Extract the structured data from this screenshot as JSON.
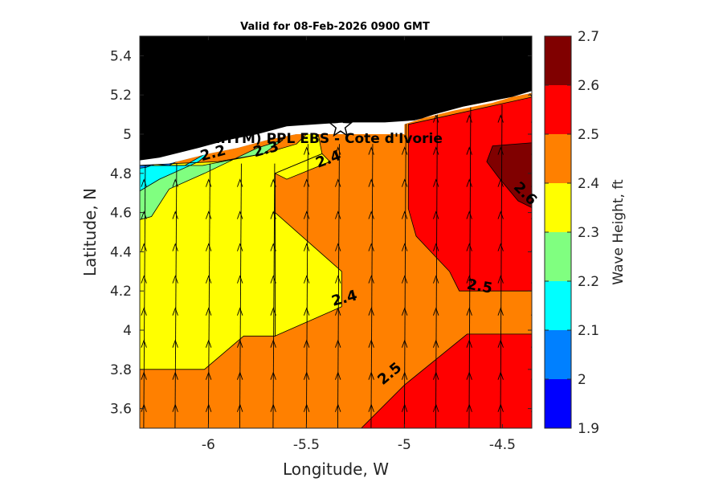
{
  "chart_data": {
    "type": "heatmap",
    "subtype": "filled-contour with wind/wave direction arrows and coastline",
    "title": "Valid for 08-Feb-2026 0900 GMT",
    "xlabel": "Longitude, W",
    "ylabel": "Latitude, N",
    "colorbar_label": "Wave Height, ft",
    "xlim": [
      -6.35,
      -4.35
    ],
    "ylim": [
      3.5,
      5.5
    ],
    "x_ticks": [
      -6,
      -5.5,
      -5,
      -4.5
    ],
    "x_tick_labels": [
      "-6",
      "-5.5",
      "-5",
      "-4.5"
    ],
    "y_ticks": [
      3.6,
      3.8,
      4.0,
      4.2,
      4.4,
      4.6,
      4.8,
      5.0,
      5.2,
      5.4
    ],
    "y_tick_labels": [
      "3.6",
      "3.8",
      "4",
      "4.2",
      "4.4",
      "4.6",
      "4.8",
      "5",
      "5.2",
      "5.4"
    ],
    "colorbar": {
      "levels": [
        1.9,
        2.0,
        2.1,
        2.2,
        2.3,
        2.4,
        2.5,
        2.6,
        2.7
      ],
      "tick_labels": [
        "1.9",
        "2",
        "2.1",
        "2.2",
        "2.3",
        "2.4",
        "2.5",
        "2.6",
        "2.7"
      ],
      "colors": [
        "#0000ff",
        "#0080ff",
        "#00ffff",
        "#80ff80",
        "#ffff00",
        "#ff8000",
        "#ff0000",
        "#800000"
      ]
    },
    "contour_labels": [
      {
        "text": "2.2",
        "lon": -5.97,
        "lat": 4.88,
        "rotation": -15
      },
      {
        "text": "2.3",
        "lon": -5.7,
        "lat": 4.9,
        "rotation": -15
      },
      {
        "text": "2.4",
        "lon": -5.38,
        "lat": 4.85,
        "rotation": -20
      },
      {
        "text": "2.4",
        "lon": -5.3,
        "lat": 4.14,
        "rotation": -15
      },
      {
        "text": "2.5",
        "lon": -4.62,
        "lat": 4.2,
        "rotation": 10
      },
      {
        "text": "2.5",
        "lon": -5.06,
        "lat": 3.76,
        "rotation": -40
      },
      {
        "text": "2.6",
        "lon": -4.4,
        "lat": 4.68,
        "rotation": 45
      }
    ],
    "station": {
      "label": "(ONHYM) PPL EBS  - Cote d'Ivorie",
      "lon": -5.33,
      "lat": 5.04
    },
    "land_color": "#000000",
    "arrow_direction": "north"
  }
}
